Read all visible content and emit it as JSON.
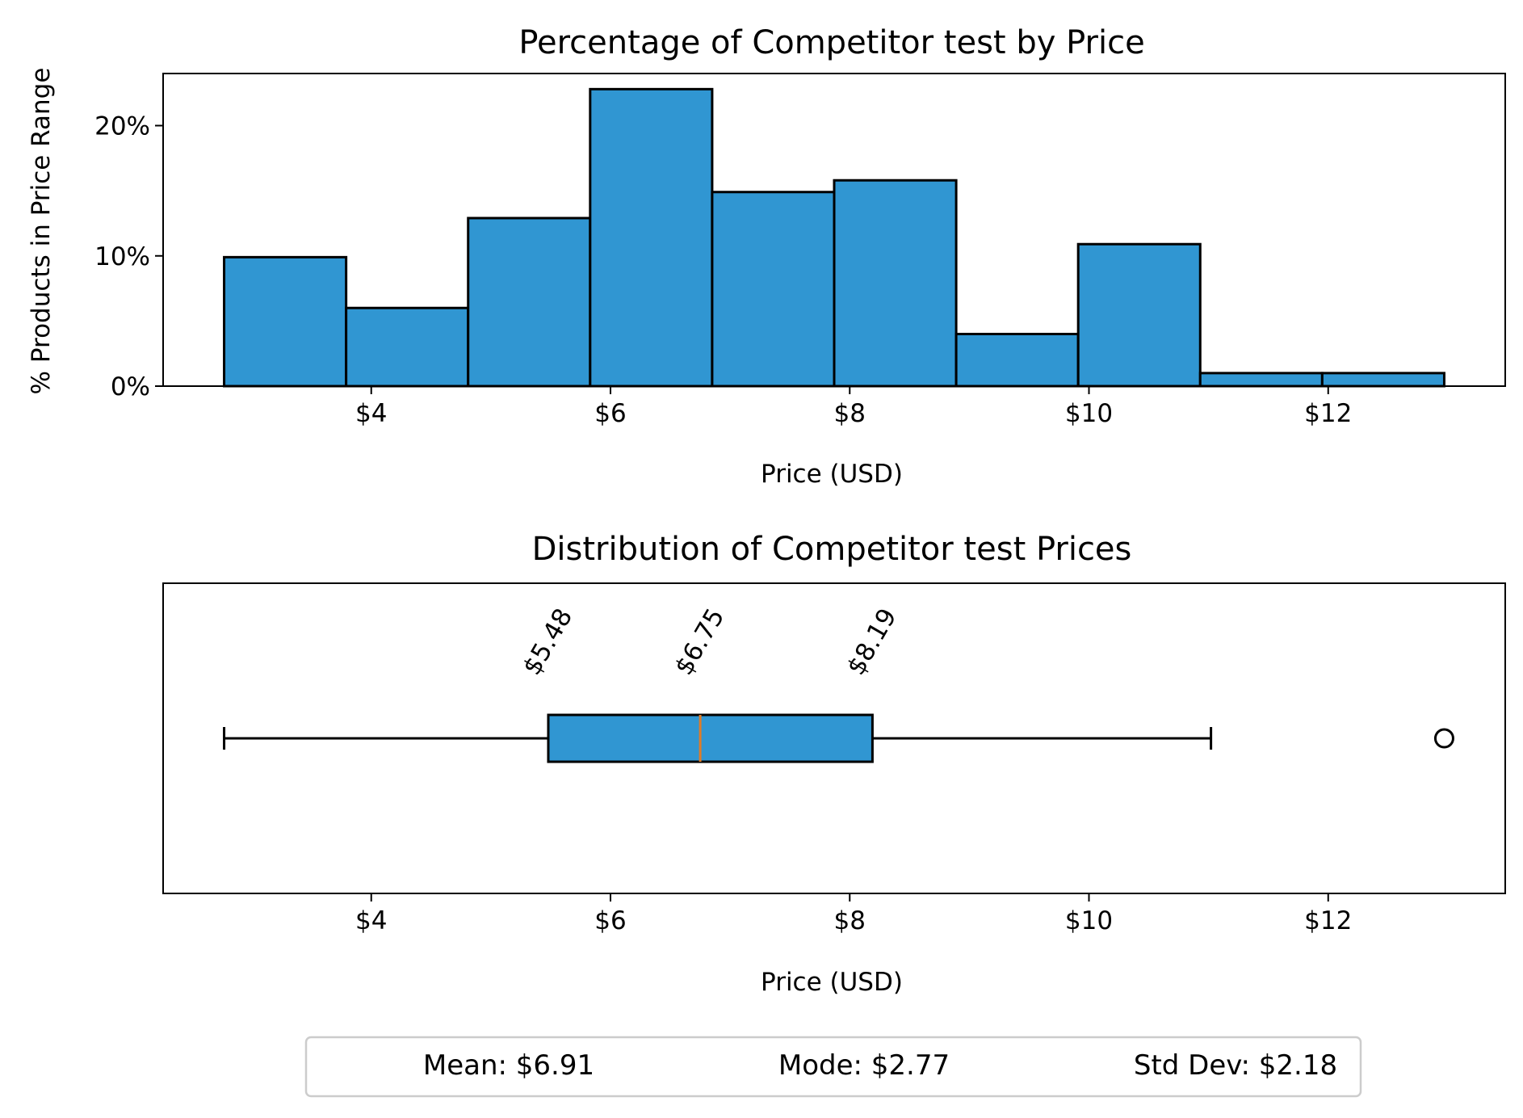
{
  "colors": {
    "bar_fill": "#3096d2",
    "edge": "#000000",
    "median": "#e07b28",
    "legend_border": "#cccccc"
  },
  "chart_data": [
    {
      "type": "bar",
      "title": "Percentage of Competitor test by Price",
      "xlabel": "Price (USD)",
      "ylabel": "% Products in Price Range",
      "bins": [
        {
          "start": 2.77,
          "end": 3.79,
          "value": 9.9
        },
        {
          "start": 3.79,
          "end": 4.81,
          "value": 6.0
        },
        {
          "start": 4.81,
          "end": 5.83,
          "value": 12.9
        },
        {
          "start": 5.83,
          "end": 6.85,
          "value": 22.8
        },
        {
          "start": 6.85,
          "end": 7.87,
          "value": 14.9
        },
        {
          "start": 7.87,
          "end": 8.89,
          "value": 15.8
        },
        {
          "start": 8.89,
          "end": 9.91,
          "value": 4.0
        },
        {
          "start": 9.91,
          "end": 10.93,
          "value": 10.9
        },
        {
          "start": 10.93,
          "end": 11.95,
          "value": 1.0
        },
        {
          "start": 11.95,
          "end": 12.97,
          "value": 1.0
        }
      ],
      "xlim": [
        2.26,
        13.48
      ],
      "ylim": [
        0,
        24
      ],
      "xticks": [
        4,
        6,
        8,
        10,
        12
      ],
      "xtick_labels": [
        "$4",
        "$6",
        "$8",
        "$10",
        "$12"
      ],
      "yticks": [
        0,
        10,
        20
      ],
      "ytick_labels": [
        "0%",
        "10%",
        "20%"
      ],
      "grid": false
    },
    {
      "type": "box",
      "title": "Distribution of Competitor test Prices",
      "xlabel": "Price (USD)",
      "whisker_low": 2.77,
      "q1": 5.48,
      "median": 6.75,
      "q3": 8.19,
      "whisker_high": 11.02,
      "outliers": [
        12.97
      ],
      "quartile_labels": [
        "$5.48",
        "$6.75",
        "$8.19"
      ],
      "xlim": [
        2.26,
        13.48
      ],
      "xticks": [
        4,
        6,
        8,
        10,
        12
      ],
      "xtick_labels": [
        "$4",
        "$6",
        "$8",
        "$10",
        "$12"
      ],
      "grid": false
    }
  ],
  "stats": {
    "mean": "Mean: $6.91",
    "mode": "Mode: $2.77",
    "std": "Std Dev: $2.18"
  }
}
